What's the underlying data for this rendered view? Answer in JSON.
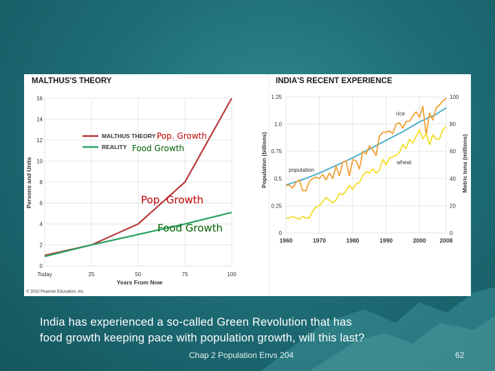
{
  "slide": {
    "caption_line1": "India has experienced a so-called Green Revolution that has",
    "caption_line2": "food growth keeping pace with population growth, will this last?",
    "footer": "Chap 2 Population Envs 204",
    "page_number": "62"
  },
  "overlay_labels": {
    "legend_pop": "Pop. Growth",
    "legend_food": "Food Growth",
    "curve_pop": "Pop. Growth",
    "curve_food": "Food Growth"
  },
  "copyright": "© 2010 Pearson Education, Inc.",
  "colors": {
    "malthus": "#b8383a",
    "reality": "#2aa462",
    "rice": "#f0a032",
    "wheat": "#f4dc28",
    "population": "#3fa9c7",
    "overlay_pop": "#c00000",
    "overlay_food": "#006000"
  },
  "chart_data": [
    {
      "type": "line",
      "title": "MALTHUS'S THEORY",
      "xlabel": "Years From Now",
      "ylabel": "Persons and Units",
      "x_ticks": [
        "Today",
        "25",
        "50",
        "75",
        "100"
      ],
      "y_ticks": [
        "0",
        "2",
        "4",
        "6",
        "8",
        "10",
        "12",
        "14",
        "16"
      ],
      "xlim": [
        0,
        100
      ],
      "ylim": [
        0,
        16
      ],
      "legend": [
        "MALTHUS THEORY",
        "REALITY"
      ],
      "series": [
        {
          "name": "MALTHUS THEORY",
          "x": [
            0,
            25,
            50,
            75,
            100
          ],
          "values": [
            1,
            2,
            4,
            8,
            16
          ]
        },
        {
          "name": "REALITY",
          "x": [
            0,
            25,
            50,
            75,
            100
          ],
          "values": [
            0.9,
            2,
            3,
            4,
            5.1
          ]
        }
      ]
    },
    {
      "type": "line",
      "title": "INDIA'S RECENT EXPERIENCE",
      "xlabel": "",
      "ylabel": "Population (billions)",
      "ylabel_right": "Metric tons (millions)",
      "x_ticks": [
        "1960",
        "1970",
        "1980",
        "1990",
        "2000",
        "2008"
      ],
      "y_ticks_left": [
        "0",
        "0.25",
        "0.5",
        "0.75",
        "1.0",
        "1.25"
      ],
      "y_ticks_right": [
        "0",
        "20",
        "40",
        "60",
        "80",
        "100"
      ],
      "xlim": [
        1960,
        2008
      ],
      "ylim_left": [
        0,
        1.25
      ],
      "ylim_right": [
        0,
        100
      ],
      "series_labels": [
        "rice",
        "wheat",
        "population"
      ],
      "series": [
        {
          "name": "population",
          "axis": "left",
          "x": [
            1960,
            1965,
            1970,
            1975,
            1980,
            1985,
            1990,
            1995,
            2000,
            2005,
            2008
          ],
          "values": [
            0.44,
            0.49,
            0.55,
            0.62,
            0.69,
            0.77,
            0.85,
            0.93,
            1.02,
            1.09,
            1.15
          ]
        },
        {
          "name": "rice",
          "axis": "right",
          "x": [
            1960,
            1961,
            1962,
            1963,
            1964,
            1965,
            1966,
            1967,
            1968,
            1969,
            1970,
            1971,
            1972,
            1973,
            1974,
            1975,
            1976,
            1977,
            1978,
            1979,
            1980,
            1981,
            1982,
            1983,
            1984,
            1985,
            1986,
            1987,
            1988,
            1989,
            1990,
            1991,
            1992,
            1993,
            1994,
            1995,
            1996,
            1997,
            1998,
            1999,
            2000,
            2001,
            2002,
            2003,
            2004,
            2005,
            2006,
            2007,
            2008
          ],
          "values": [
            35,
            35,
            33,
            37,
            39,
            31,
            31,
            38,
            40,
            41,
            40,
            43,
            39,
            44,
            40,
            49,
            42,
            52,
            53,
            42,
            54,
            53,
            47,
            60,
            58,
            64,
            61,
            57,
            71,
            74,
            74,
            75,
            73,
            80,
            81,
            77,
            82,
            82,
            86,
            89,
            85,
            93,
            72,
            88,
            83,
            92,
            94,
            97,
            99
          ]
        },
        {
          "name": "wheat",
          "axis": "right",
          "x": [
            1960,
            1961,
            1962,
            1963,
            1964,
            1965,
            1966,
            1967,
            1968,
            1969,
            1970,
            1971,
            1972,
            1973,
            1974,
            1975,
            1976,
            1977,
            1978,
            1979,
            1980,
            1981,
            1982,
            1983,
            1984,
            1985,
            1986,
            1987,
            1988,
            1989,
            1990,
            1991,
            1992,
            1993,
            1994,
            1995,
            1996,
            1997,
            1998,
            1999,
            2000,
            2001,
            2002,
            2003,
            2004,
            2005,
            2006,
            2007,
            2008
          ],
          "values": [
            11,
            11,
            12,
            11,
            10,
            12,
            11,
            11,
            16,
            19,
            20,
            23,
            26,
            24,
            22,
            24,
            29,
            28,
            31,
            35,
            32,
            36,
            37,
            42,
            45,
            44,
            47,
            44,
            46,
            54,
            50,
            55,
            56,
            57,
            59,
            65,
            62,
            69,
            66,
            71,
            76,
            69,
            73,
            65,
            72,
            69,
            69,
            76,
            78
          ]
        }
      ]
    }
  ]
}
